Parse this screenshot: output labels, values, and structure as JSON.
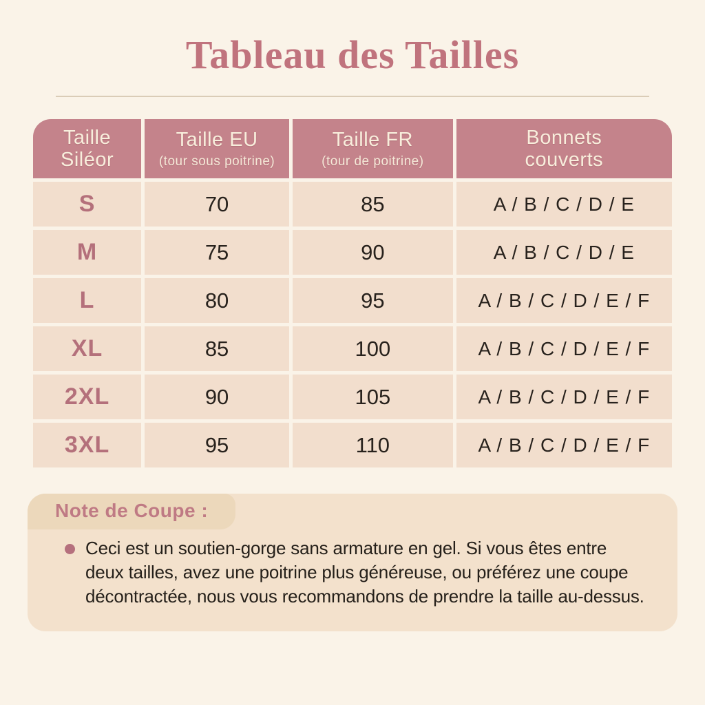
{
  "title": "Tableau des Tailles",
  "table": {
    "columns": [
      {
        "line1": "Taille",
        "line2": "Siléor"
      },
      {
        "line1": "Taille EU",
        "line2": "(tour sous poitrine)"
      },
      {
        "line1": "Taille FR",
        "line2": "(tour de poitrine)"
      },
      {
        "line1": "Bonnets",
        "line2": "couverts"
      }
    ],
    "rows": [
      {
        "size": "S",
        "eu": "70",
        "fr": "85",
        "cups": "A / B / C / D / E"
      },
      {
        "size": "M",
        "eu": "75",
        "fr": "90",
        "cups": "A / B / C / D / E"
      },
      {
        "size": "L",
        "eu": "80",
        "fr": "95",
        "cups": "A / B / C / D / E / F"
      },
      {
        "size": "XL",
        "eu": "85",
        "fr": "100",
        "cups": "A / B / C / D / E / F"
      },
      {
        "size": "2XL",
        "eu": "90",
        "fr": "105",
        "cups": "A / B / C / D / E / F"
      },
      {
        "size": "3XL",
        "eu": "95",
        "fr": "110",
        "cups": "A / B / C / D / E / F"
      }
    ]
  },
  "note": {
    "label": "Note de Coupe :",
    "bullet_text": "Ceci est un soutien-gorge sans armature en gel. Si vous êtes entre deux tailles, avez une poitrine plus généreuse, ou préférez une coupe décontractée, nous vous recommandons de prendre la taille au-dessus."
  },
  "colors": {
    "background": "#FAF3E8",
    "title_text": "#C0737D",
    "divider": "#DACCB7",
    "header_bg": "#C4838B",
    "header_text": "#F8EEDC",
    "cell_bg": "#F2DECD",
    "size_text": "#B4707B",
    "value_text": "#28221D",
    "note_bg": "#F3E1CC",
    "note_tab_bg": "#ECD8BB",
    "note_label_text": "#BF7A84",
    "bullet": "#B5707D"
  }
}
